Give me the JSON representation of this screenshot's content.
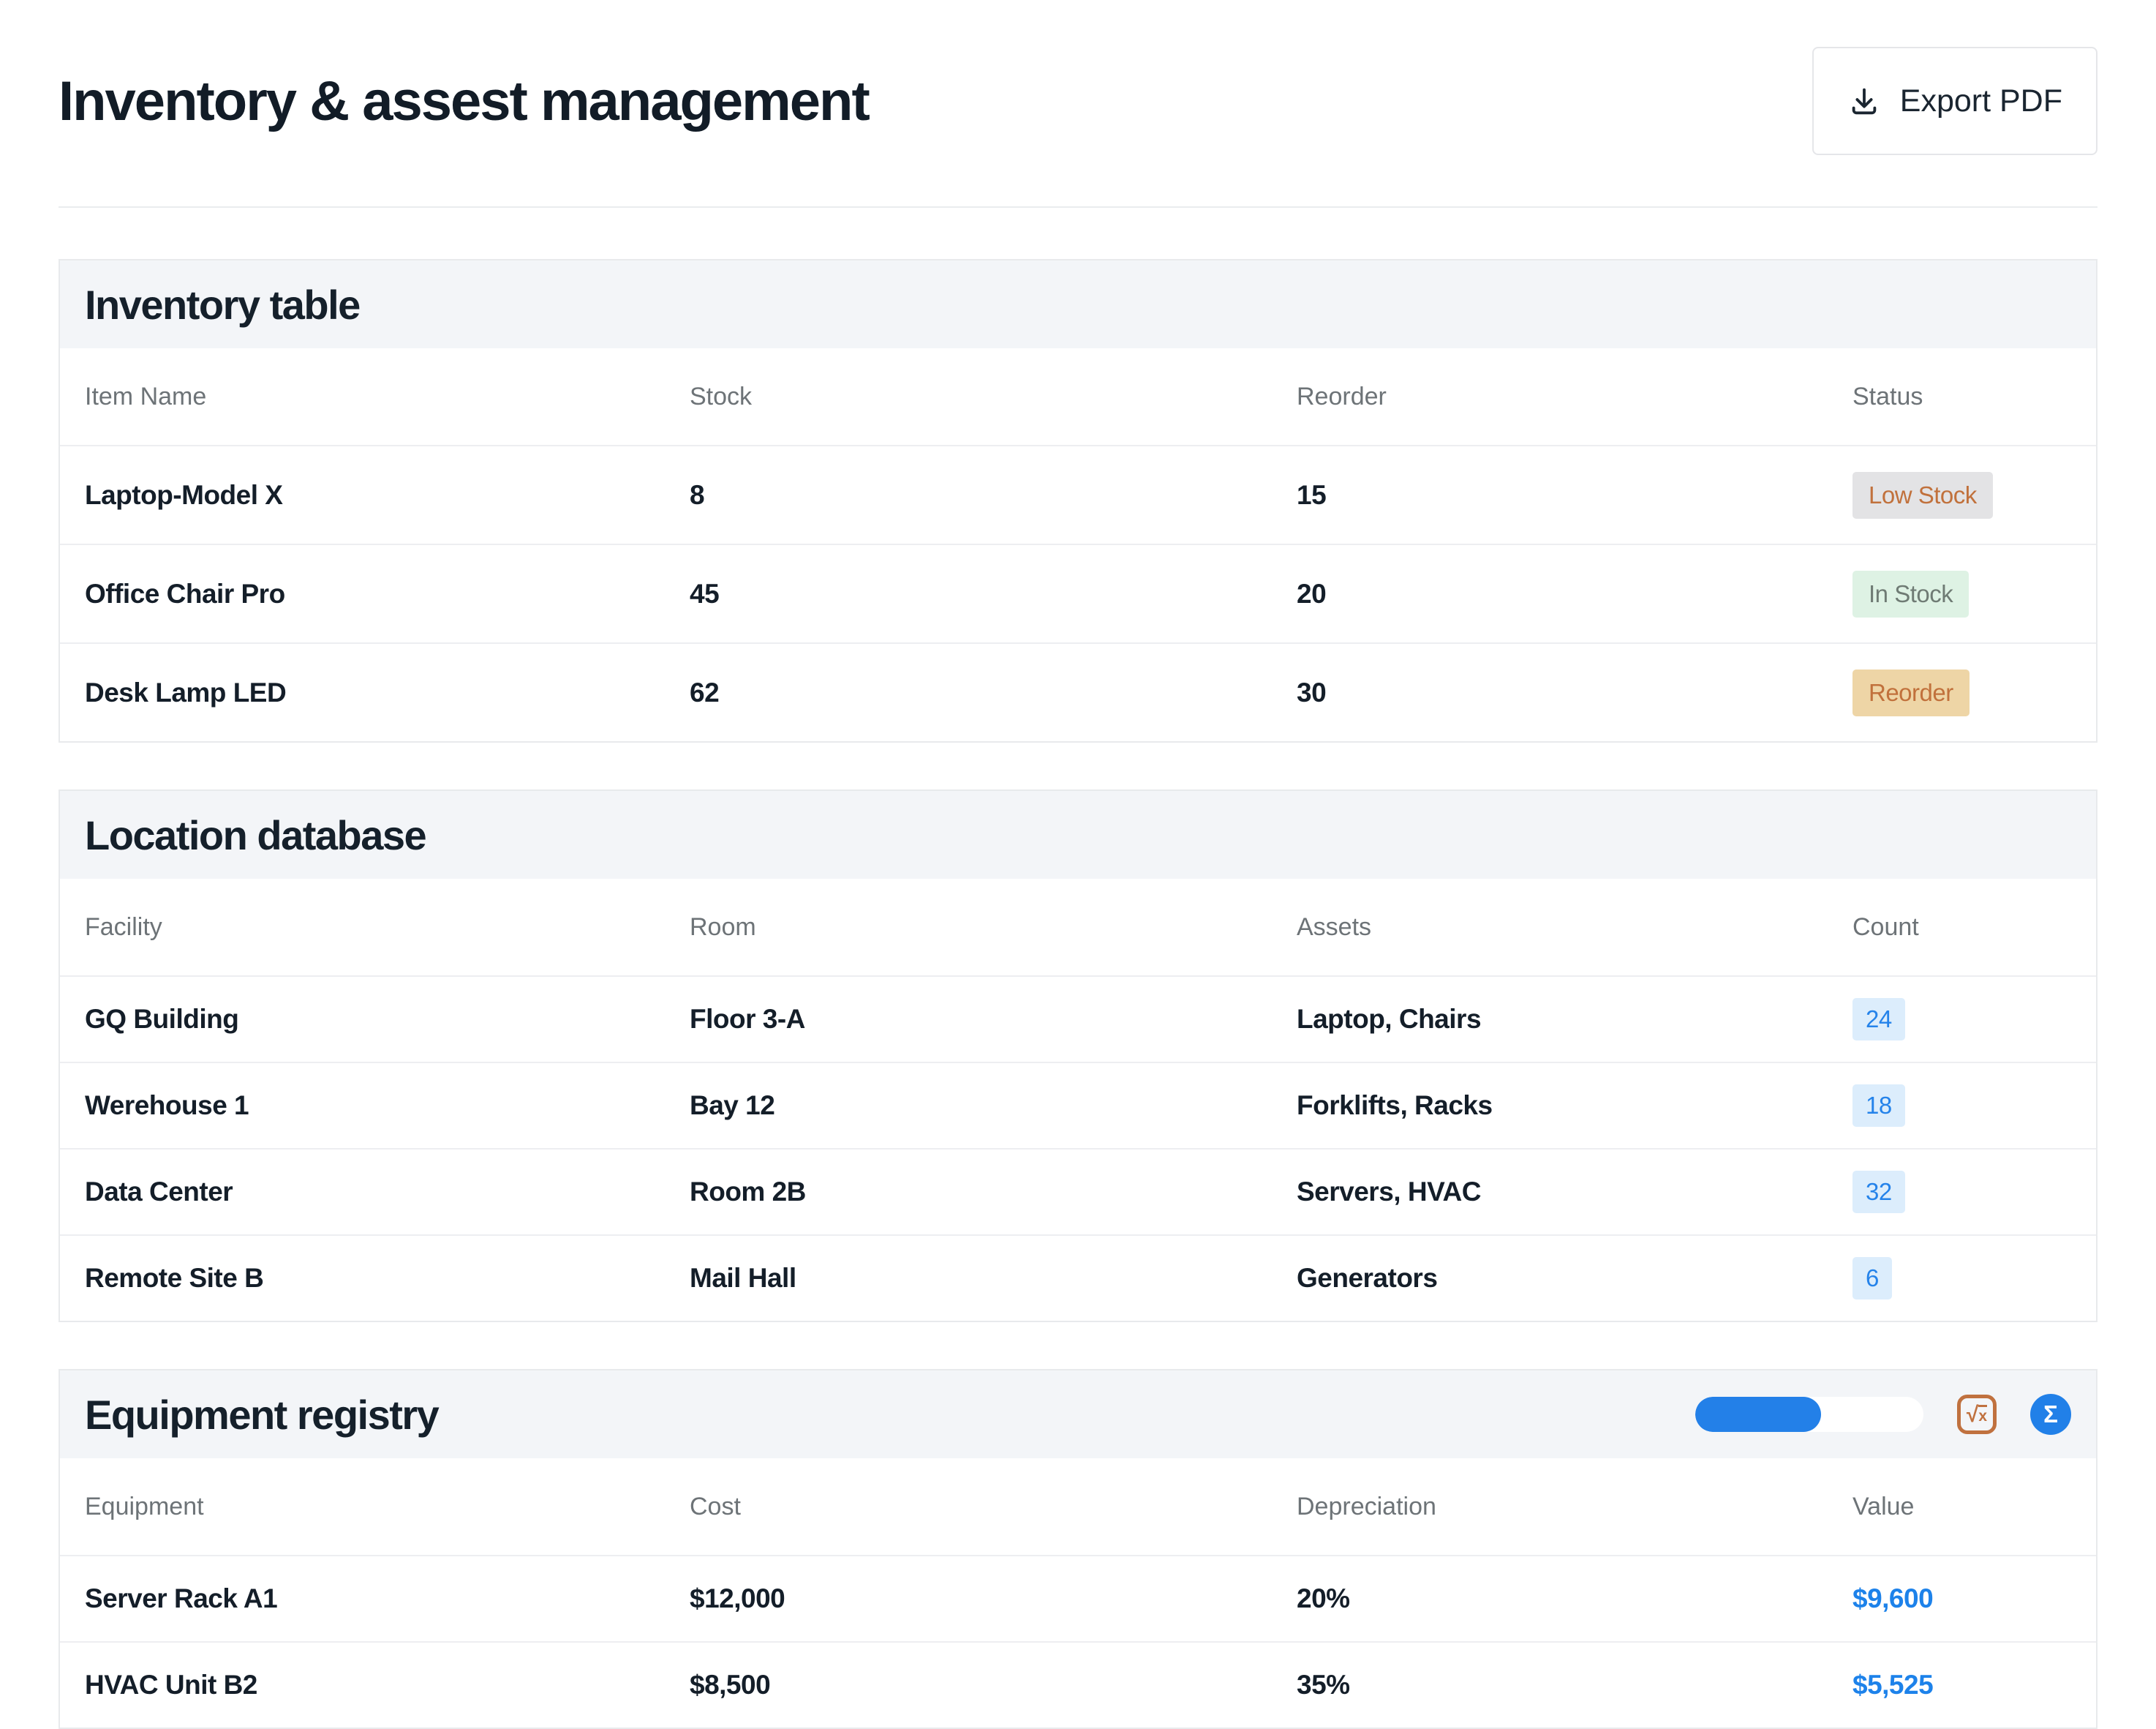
{
  "page": {
    "title": "Inventory & assest management"
  },
  "toolbar": {
    "export_label": "Export PDF",
    "export_icon": "download-icon"
  },
  "colors": {
    "accent_blue": "#2180e8",
    "text_dark": "#141e29",
    "header_gray": "#6d7377",
    "section_header_bg": "#f3f5f8",
    "badge_low_bg": "#e3e3e5",
    "badge_low_text": "#c1713c",
    "badge_in_bg": "#def2e4",
    "badge_in_text": "#6f7b74",
    "badge_reorder_bg": "#eed5a6",
    "badge_reorder_text": "#c1713c",
    "count_badge_bg": "#dcedfc",
    "count_badge_text": "#2583ea",
    "value_text": "#1d82ea"
  },
  "inventory_table": {
    "section_title": "Inventory table",
    "columns": [
      "Item Name",
      "Stock",
      "Reorder",
      "Status"
    ],
    "rows": [
      {
        "item": "Laptop-Model X",
        "stock": "8",
        "reorder": "15",
        "status": "Low Stock",
        "status_style": "low"
      },
      {
        "item": "Office Chair Pro",
        "stock": "45",
        "reorder": "20",
        "status": "In Stock",
        "status_style": "in"
      },
      {
        "item": "Desk Lamp LED",
        "stock": "62",
        "reorder": "30",
        "status": "Reorder",
        "status_style": "reorder"
      }
    ]
  },
  "location_database": {
    "section_title": "Location database",
    "columns": [
      "Facility",
      "Room",
      "Assets",
      "Count"
    ],
    "rows": [
      {
        "facility": "GQ Building",
        "room": "Floor 3-A",
        "assets": "Laptop, Chairs",
        "count": "24"
      },
      {
        "facility": "Werehouse 1",
        "room": "Bay 12",
        "assets": "Forklifts, Racks",
        "count": "18"
      },
      {
        "facility": "Data Center",
        "room": "Room 2B",
        "assets": "Servers, HVAC",
        "count": "32"
      },
      {
        "facility": "Remote Site B",
        "room": "Mail Hall",
        "assets": "Generators",
        "count": "6"
      }
    ]
  },
  "equipment_registry": {
    "section_title": "Equipment registry",
    "progress_percent": 55,
    "sqrt_radical": "√",
    "sqrt_operand": "x",
    "sigma_symbol": "Σ",
    "columns": [
      "Equipment",
      "Cost",
      "Depreciation",
      "Value"
    ],
    "rows": [
      {
        "equipment": "Server Rack A1",
        "cost": "$12,000",
        "depreciation": "20%",
        "value": "$9,600"
      },
      {
        "equipment": "HVAC Unit B2",
        "cost": "$8,500",
        "depreciation": "35%",
        "value": "$5,525"
      }
    ]
  }
}
